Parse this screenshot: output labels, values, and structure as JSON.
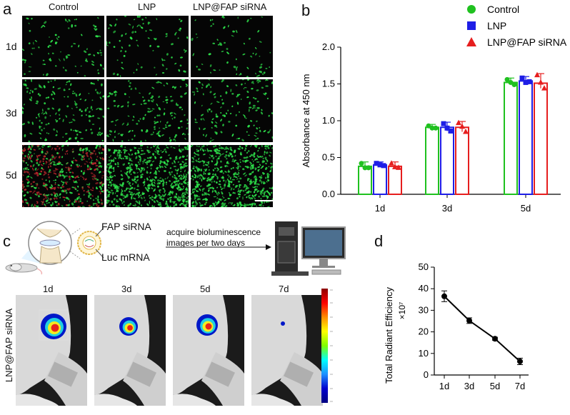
{
  "panels": {
    "a": "a",
    "b": "b",
    "c": "c",
    "d": "d"
  },
  "panel_a": {
    "col_labels": [
      "Control",
      "LNP",
      "LNP@FAP siRNA"
    ],
    "row_labels": [
      "1d",
      "3d",
      "5d"
    ]
  },
  "panel_c": {
    "inset_labels": [
      "FAP siRNA",
      "Luc mRNA"
    ],
    "arrow_text_lines": [
      "acquire bioluminescence",
      "images  per two days"
    ],
    "side_label": "LNP@FAP siRNA",
    "time_labels": [
      "1d",
      "3d",
      "5d",
      "7d"
    ]
  },
  "colors": {
    "control": "#1fc11f",
    "lnp": "#1e1ee6",
    "fap": "#e61e1e",
    "green_cells": "#2de04a"
  },
  "chart_data": [
    {
      "type": "bar",
      "panel": "b",
      "categories": [
        "1d",
        "3d",
        "5d"
      ],
      "ylabel": "Absorbance at 450 nm",
      "xlabel": "",
      "ylim": [
        0,
        2.0
      ],
      "yticks": [
        "0.0",
        "0.5",
        "1.0",
        "1.5",
        "2.0"
      ],
      "legend_placement": "top-right",
      "series": [
        {
          "name": "Control",
          "marker": "circle",
          "values": [
            0.38,
            0.91,
            1.52
          ],
          "points": [
            [
              0.42,
              0.36,
              0.36
            ],
            [
              0.93,
              0.9,
              0.9
            ],
            [
              1.56,
              1.52,
              1.49
            ]
          ]
        },
        {
          "name": "LNP",
          "marker": "square",
          "values": [
            0.4,
            0.91,
            1.54
          ],
          "points": [
            [
              0.42,
              0.4,
              0.39
            ],
            [
              0.96,
              0.9,
              0.86
            ],
            [
              1.58,
              1.52,
              1.53
            ]
          ]
        },
        {
          "name": "LNP@FAP siRNA",
          "marker": "triangle",
          "values": [
            0.38,
            0.91,
            1.51
          ],
          "points": [
            [
              0.42,
              0.37,
              0.36
            ],
            [
              0.97,
              0.92,
              0.85
            ],
            [
              1.62,
              1.52,
              1.44
            ]
          ]
        }
      ]
    },
    {
      "type": "line",
      "panel": "d",
      "x": [
        "1d",
        "3d",
        "5d",
        "7d"
      ],
      "values": [
        36.5,
        25.2,
        16.8,
        6.3
      ],
      "errors": [
        2.5,
        1.3,
        0.7,
        1.5
      ],
      "ylabel": "Total Radiant Efficiency",
      "yunit": "×10⁷",
      "ylim": [
        0,
        50
      ],
      "yticks": [
        "0",
        "10",
        "20",
        "30",
        "40",
        "50"
      ]
    }
  ]
}
